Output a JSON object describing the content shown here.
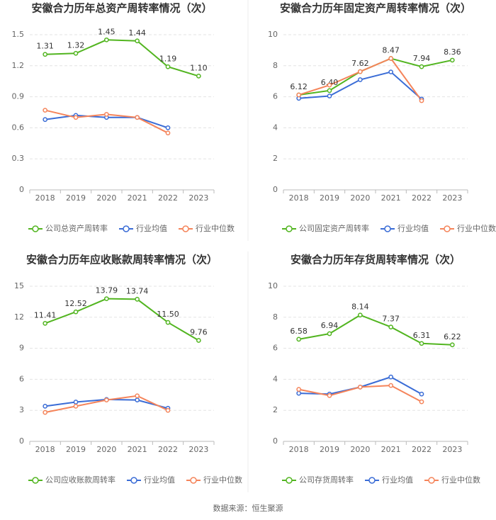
{
  "chart_data": [
    {
      "type": "line",
      "title": "安徽合力历年总资产周转率情况（次）",
      "categories": [
        "2018",
        "2019",
        "2020",
        "2021",
        "2022",
        "2023"
      ],
      "series": [
        {
          "name": "公司总资产周转率",
          "color": "#52b520",
          "values": [
            1.31,
            1.32,
            1.45,
            1.44,
            1.19,
            1.1
          ],
          "value_labels": [
            "1.31",
            "1.32",
            "1.45",
            "1.44",
            "1.19",
            "1.10"
          ]
        },
        {
          "name": "行业均值",
          "color": "#3a6cd6",
          "values": [
            0.68,
            0.72,
            0.7,
            0.7,
            0.6,
            null
          ]
        },
        {
          "name": "行业中位数",
          "color": "#f5845a",
          "values": [
            0.77,
            0.7,
            0.73,
            0.7,
            0.55,
            null
          ]
        }
      ],
      "ylim": [
        0,
        1.5
      ],
      "yticks": [
        0,
        0.3,
        0.6,
        0.9,
        1.2,
        1.5
      ],
      "grid": true
    },
    {
      "type": "line",
      "title": "安徽合力历年固定资产周转率情况（次）",
      "categories": [
        "2018",
        "2019",
        "2020",
        "2021",
        "2022",
        "2023"
      ],
      "series": [
        {
          "name": "公司固定资产周转率",
          "color": "#52b520",
          "values": [
            6.12,
            6.4,
            7.62,
            8.47,
            7.94,
            8.36
          ],
          "value_labels": [
            "6.12",
            "6.40",
            "7.62",
            "8.47",
            "7.94",
            "8.36"
          ]
        },
        {
          "name": "行业均值",
          "color": "#3a6cd6",
          "values": [
            5.9,
            6.05,
            7.1,
            7.6,
            5.85,
            null
          ]
        },
        {
          "name": "行业中位数",
          "color": "#f5845a",
          "values": [
            6.12,
            6.75,
            7.62,
            8.47,
            5.75,
            null
          ]
        }
      ],
      "ylim": [
        0,
        10
      ],
      "yticks": [
        0,
        2,
        4,
        6,
        8,
        10
      ],
      "grid": true
    },
    {
      "type": "line",
      "title": "安徽合力历年应收账款周转率情况（次）",
      "categories": [
        "2018",
        "2019",
        "2020",
        "2021",
        "2022",
        "2023"
      ],
      "series": [
        {
          "name": "公司应收账款周转率",
          "color": "#52b520",
          "values": [
            11.41,
            12.52,
            13.79,
            13.74,
            11.5,
            9.76
          ],
          "value_labels": [
            "11.41",
            "12.52",
            "13.79",
            "13.74",
            "11.50",
            "9.76"
          ]
        },
        {
          "name": "行业均值",
          "color": "#3a6cd6",
          "values": [
            3.4,
            3.8,
            4.05,
            4.0,
            3.2,
            null
          ]
        },
        {
          "name": "行业中位数",
          "color": "#f5845a",
          "values": [
            2.8,
            3.4,
            4.0,
            4.4,
            3.0,
            null
          ]
        }
      ],
      "ylim": [
        0,
        15
      ],
      "yticks": [
        0,
        3,
        6,
        9,
        12,
        15
      ],
      "grid": true
    },
    {
      "type": "line",
      "title": "安徽合力历年存货周转率情况（次）",
      "categories": [
        "2018",
        "2019",
        "2020",
        "2021",
        "2022",
        "2023"
      ],
      "series": [
        {
          "name": "公司存货周转率",
          "color": "#52b520",
          "values": [
            6.58,
            6.94,
            8.14,
            7.37,
            6.31,
            6.22
          ],
          "value_labels": [
            "6.58",
            "6.94",
            "8.14",
            "7.37",
            "6.31",
            "6.22"
          ]
        },
        {
          "name": "行业均值",
          "color": "#3a6cd6",
          "values": [
            3.1,
            3.05,
            3.5,
            4.15,
            3.05,
            null
          ]
        },
        {
          "name": "行业中位数",
          "color": "#f5845a",
          "values": [
            3.35,
            2.95,
            3.5,
            3.6,
            2.55,
            null
          ]
        }
      ],
      "ylim": [
        0,
        10
      ],
      "yticks": [
        0,
        2,
        4,
        6,
        8,
        10
      ],
      "grid": true
    }
  ],
  "source": "数据来源：恒生聚源"
}
